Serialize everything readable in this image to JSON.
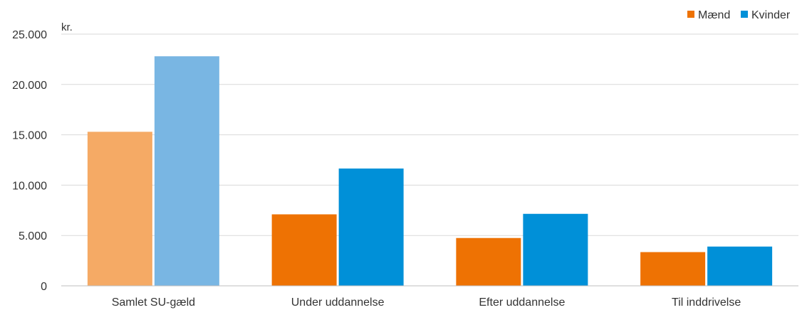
{
  "chart_data": {
    "type": "bar",
    "unit_label": "kr.",
    "categories": [
      "Samlet SU-gæld",
      "Under uddannelse",
      "Efter uddannelse",
      "Til inddrivelse"
    ],
    "series": [
      {
        "name": "Mænd",
        "values": [
          15300,
          7100,
          4750,
          3350
        ],
        "color": "#ee7203",
        "highlight_color": "#f5aa65"
      },
      {
        "name": "Kvinder",
        "values": [
          22800,
          11650,
          7150,
          3900
        ],
        "color": "#0090d8",
        "highlight_color": "#79b6e3"
      }
    ],
    "highlighted_category": "Samlet SU-gæld",
    "ylim": [
      0,
      25000
    ],
    "yticks": [
      0,
      5000,
      10000,
      15000,
      20000,
      25000
    ],
    "ytick_labels": [
      "0",
      "5.000",
      "10.000",
      "15.000",
      "20.000",
      "25.000"
    ],
    "grid": true,
    "legend_position": "top-right"
  }
}
